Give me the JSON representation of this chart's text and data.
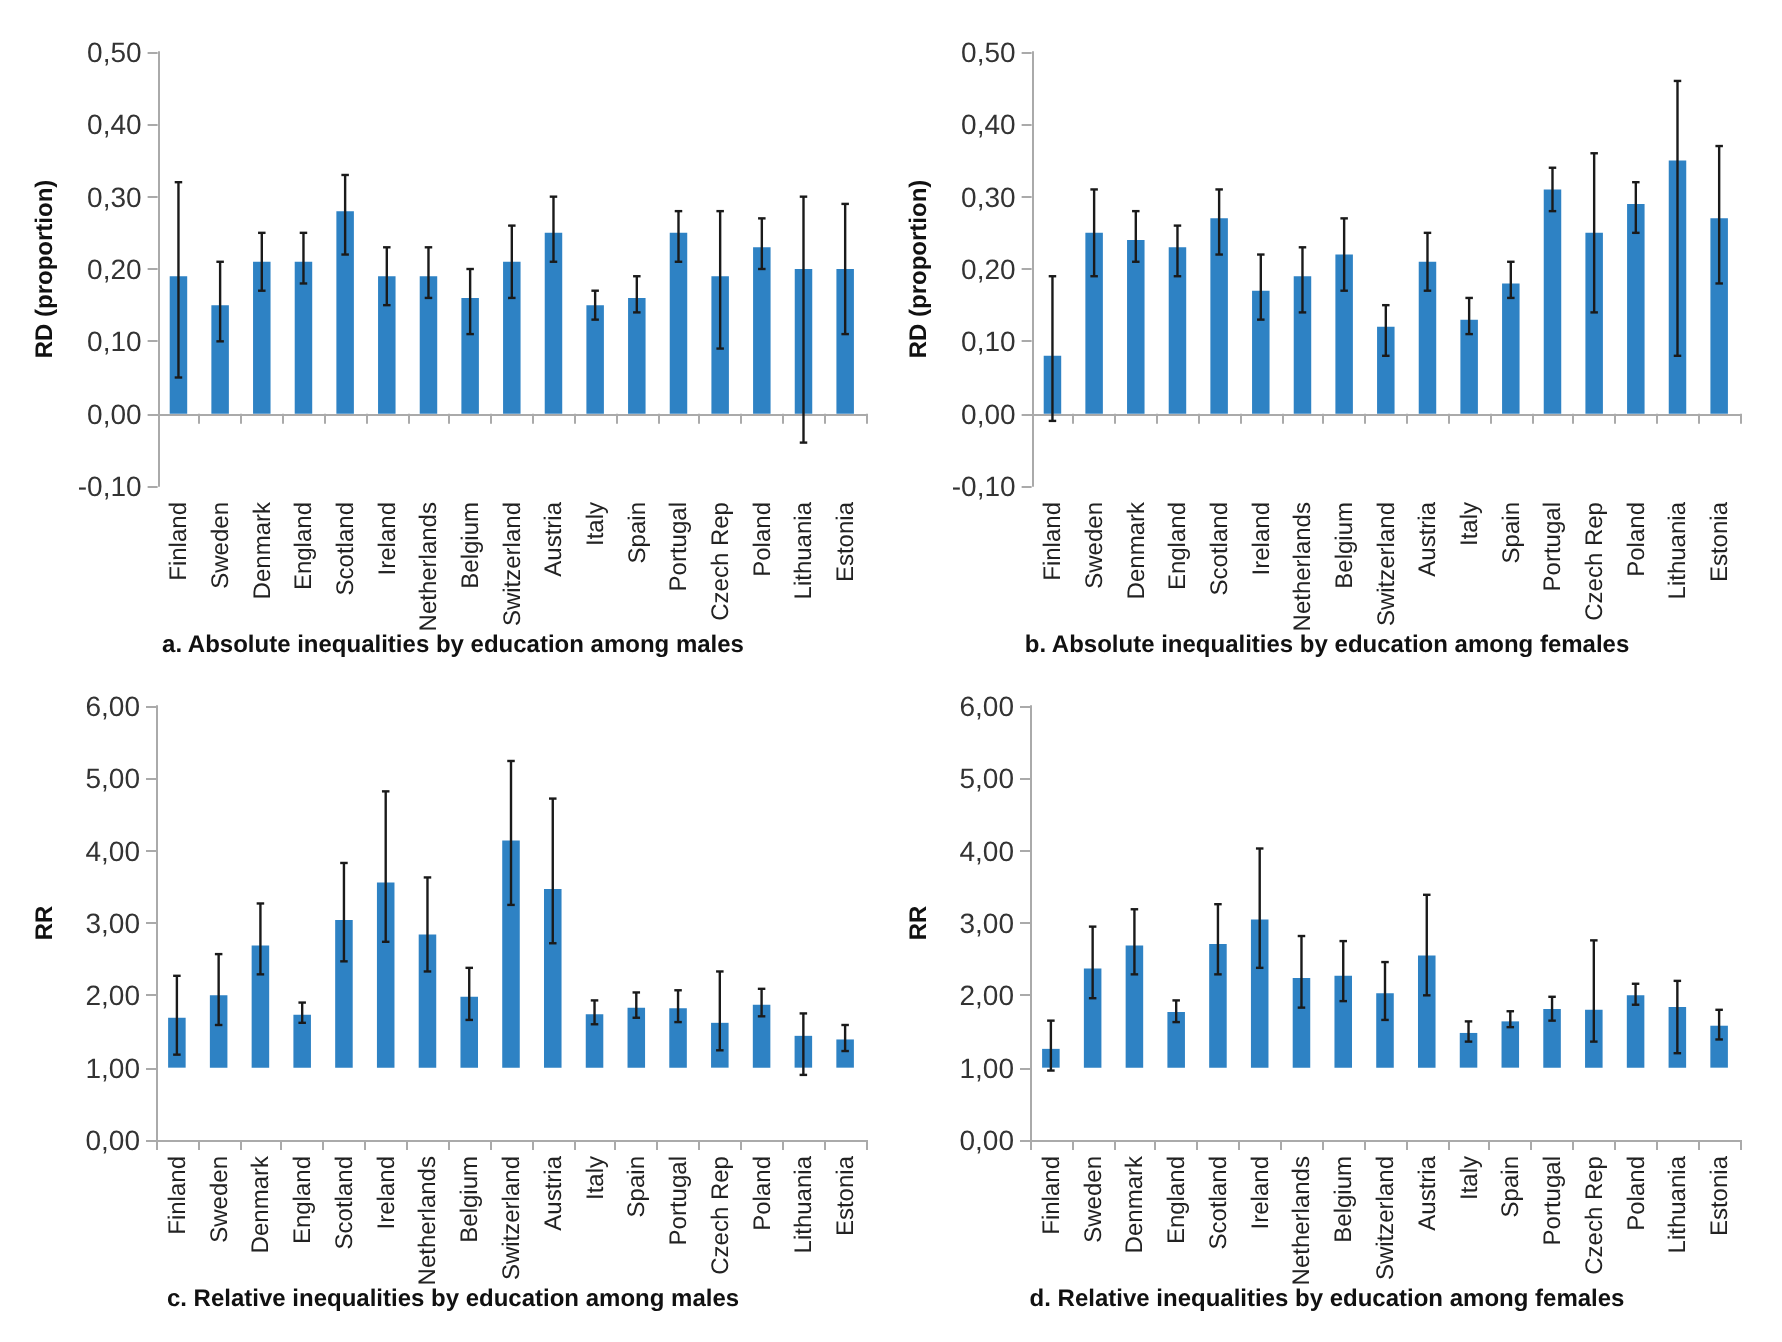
{
  "chart_data": [
    {
      "type": "bar",
      "title": "a. Absolute inequalities by education among males",
      "ylabel": "RD (proportion)",
      "color": "#2e82c4",
      "categories": [
        "Finland",
        "Sweden",
        "Denmark",
        "England",
        "Scotland",
        "Ireland",
        "Netherlands",
        "Belgium",
        "Switzerland",
        "Austria",
        "Italy",
        "Spain",
        "Portugal",
        "Czech Rep",
        "Poland",
        "Lithuania",
        "Estonia"
      ],
      "values": [
        0.19,
        0.15,
        0.21,
        0.21,
        0.28,
        0.19,
        0.19,
        0.16,
        0.21,
        0.25,
        0.15,
        0.16,
        0.25,
        0.19,
        0.23,
        0.2,
        0.2
      ],
      "errors": [
        [
          0.05,
          0.32
        ],
        [
          0.1,
          0.21
        ],
        [
          0.17,
          0.25
        ],
        [
          0.18,
          0.25
        ],
        [
          0.22,
          0.33
        ],
        [
          0.15,
          0.23
        ],
        [
          0.16,
          0.23
        ],
        [
          0.11,
          0.2
        ],
        [
          0.16,
          0.26
        ],
        [
          0.21,
          0.3
        ],
        [
          0.13,
          0.17
        ],
        [
          0.14,
          0.19
        ],
        [
          0.21,
          0.28
        ],
        [
          0.09,
          0.28
        ],
        [
          0.2,
          0.27
        ],
        [
          -0.04,
          0.3
        ],
        [
          0.11,
          0.29
        ]
      ],
      "ylim": [
        -0.1,
        0.5
      ],
      "yticks": [
        {
          "value": -0.1,
          "label": "-0,10"
        },
        {
          "value": 0,
          "label": "0,00"
        },
        {
          "value": 0.1,
          "label": "0,10"
        },
        {
          "value": 0.2,
          "label": "0,20"
        },
        {
          "value": 0.3,
          "label": "0,30"
        },
        {
          "value": 0.4,
          "label": "0,40"
        },
        {
          "value": 0.5,
          "label": "0,50"
        }
      ]
    },
    {
      "type": "bar",
      "title": "b. Absolute inequalities by education among females",
      "ylabel": "RD (proportion)",
      "color": "#2e82c4",
      "categories": [
        "Finland",
        "Sweden",
        "Denmark",
        "England",
        "Scotland",
        "Ireland",
        "Netherlands",
        "Belgium",
        "Switzerland",
        "Austria",
        "Italy",
        "Spain",
        "Portugal",
        "Czech Rep",
        "Poland",
        "Lithuania",
        "Estonia"
      ],
      "values": [
        0.08,
        0.25,
        0.24,
        0.23,
        0.27,
        0.17,
        0.19,
        0.22,
        0.12,
        0.21,
        0.13,
        0.18,
        0.31,
        0.25,
        0.29,
        0.35,
        0.27
      ],
      "errors": [
        [
          -0.01,
          0.19
        ],
        [
          0.19,
          0.31
        ],
        [
          0.21,
          0.28
        ],
        [
          0.19,
          0.26
        ],
        [
          0.22,
          0.31
        ],
        [
          0.13,
          0.22
        ],
        [
          0.14,
          0.23
        ],
        [
          0.17,
          0.27
        ],
        [
          0.08,
          0.15
        ],
        [
          0.17,
          0.25
        ],
        [
          0.11,
          0.16
        ],
        [
          0.16,
          0.21
        ],
        [
          0.28,
          0.34
        ],
        [
          0.14,
          0.36
        ],
        [
          0.25,
          0.32
        ],
        [
          0.08,
          0.46
        ],
        [
          0.18,
          0.37
        ]
      ],
      "ylim": [
        -0.1,
        0.5
      ],
      "yticks": [
        {
          "value": -0.1,
          "label": "-0,10"
        },
        {
          "value": 0,
          "label": "0,00"
        },
        {
          "value": 0.1,
          "label": "0,10"
        },
        {
          "value": 0.2,
          "label": "0,20"
        },
        {
          "value": 0.3,
          "label": "0,30"
        },
        {
          "value": 0.4,
          "label": "0,40"
        },
        {
          "value": 0.5,
          "label": "0,50"
        }
      ]
    },
    {
      "type": "bar",
      "title": "c. Relative inequalities by education among males",
      "ylabel": "RR",
      "color": "#2e82c4",
      "categories": [
        "Finland",
        "Sweden",
        "Denmark",
        "England",
        "Scotland",
        "Ireland",
        "Netherlands",
        "Belgium",
        "Switzerland",
        "Austria",
        "Italy",
        "Spain",
        "Portugal",
        "Czech Rep",
        "Poland",
        "Lithuania",
        "Estonia"
      ],
      "base": [
        1,
        1,
        1,
        1,
        1,
        1,
        1,
        1,
        1,
        1,
        1,
        1,
        1,
        1,
        1,
        1,
        1
      ],
      "values": [
        0.69,
        1.0,
        1.69,
        0.73,
        2.04,
        2.56,
        1.84,
        0.98,
        3.14,
        2.47,
        0.74,
        0.83,
        0.82,
        0.62,
        0.87,
        0.44,
        0.39
      ],
      "errors": [
        [
          1.18,
          2.27
        ],
        [
          1.59,
          2.57
        ],
        [
          2.29,
          3.27
        ],
        [
          1.62,
          1.9
        ],
        [
          2.47,
          3.83
        ],
        [
          2.74,
          4.82
        ],
        [
          2.33,
          3.63
        ],
        [
          1.66,
          2.38
        ],
        [
          3.25,
          5.24
        ],
        [
          2.72,
          4.72
        ],
        [
          1.6,
          1.93
        ],
        [
          1.69,
          2.04
        ],
        [
          1.63,
          2.07
        ],
        [
          1.24,
          2.33
        ],
        [
          1.71,
          2.09
        ],
        [
          0.9,
          1.75
        ],
        [
          1.23,
          1.59
        ]
      ],
      "ylim": [
        0,
        6
      ],
      "yticks": [
        {
          "value": 0,
          "label": "0,00"
        },
        {
          "value": 1,
          "label": "1,00"
        },
        {
          "value": 2,
          "label": "2,00"
        },
        {
          "value": 3,
          "label": "3,00"
        },
        {
          "value": 4,
          "label": "4,00"
        },
        {
          "value": 5,
          "label": "5,00"
        },
        {
          "value": 6,
          "label": "6,00"
        }
      ]
    },
    {
      "type": "bar",
      "title": "d. Relative inequalities by education among females",
      "ylabel": "RR",
      "color": "#2e82c4",
      "categories": [
        "Finland",
        "Sweden",
        "Denmark",
        "England",
        "Scotland",
        "Ireland",
        "Netherlands",
        "Belgium",
        "Switzerland",
        "Austria",
        "Italy",
        "Spain",
        "Portugal",
        "Czech Rep",
        "Poland",
        "Lithuania",
        "Estonia"
      ],
      "base": [
        1,
        1,
        1,
        1,
        1,
        1,
        1,
        1,
        1,
        1,
        1,
        1,
        1,
        1,
        1,
        1,
        1
      ],
      "values": [
        0.26,
        1.37,
        1.69,
        0.77,
        1.71,
        2.05,
        1.24,
        1.27,
        1.03,
        1.55,
        0.48,
        0.64,
        0.81,
        0.8,
        1.0,
        0.84,
        0.58
      ],
      "errors": [
        [
          0.96,
          1.65
        ],
        [
          1.96,
          2.95
        ],
        [
          2.29,
          3.19
        ],
        [
          1.63,
          1.93
        ],
        [
          2.29,
          3.26
        ],
        [
          2.38,
          4.03
        ],
        [
          1.83,
          2.82
        ],
        [
          1.92,
          2.75
        ],
        [
          1.66,
          2.46
        ],
        [
          2.0,
          3.39
        ],
        [
          1.36,
          1.64
        ],
        [
          1.56,
          1.78
        ],
        [
          1.65,
          1.98
        ],
        [
          1.36,
          2.76
        ],
        [
          1.87,
          2.16
        ],
        [
          1.2,
          2.2
        ],
        [
          1.39,
          1.8
        ]
      ],
      "ylim": [
        0,
        6
      ],
      "yticks": [
        {
          "value": 0,
          "label": "0,00"
        },
        {
          "value": 1,
          "label": "1,00"
        },
        {
          "value": 2,
          "label": "2,00"
        },
        {
          "value": 3,
          "label": "3,00"
        },
        {
          "value": 4,
          "label": "4,00"
        },
        {
          "value": 5,
          "label": "5,00"
        },
        {
          "value": 6,
          "label": "6,00"
        }
      ]
    }
  ]
}
